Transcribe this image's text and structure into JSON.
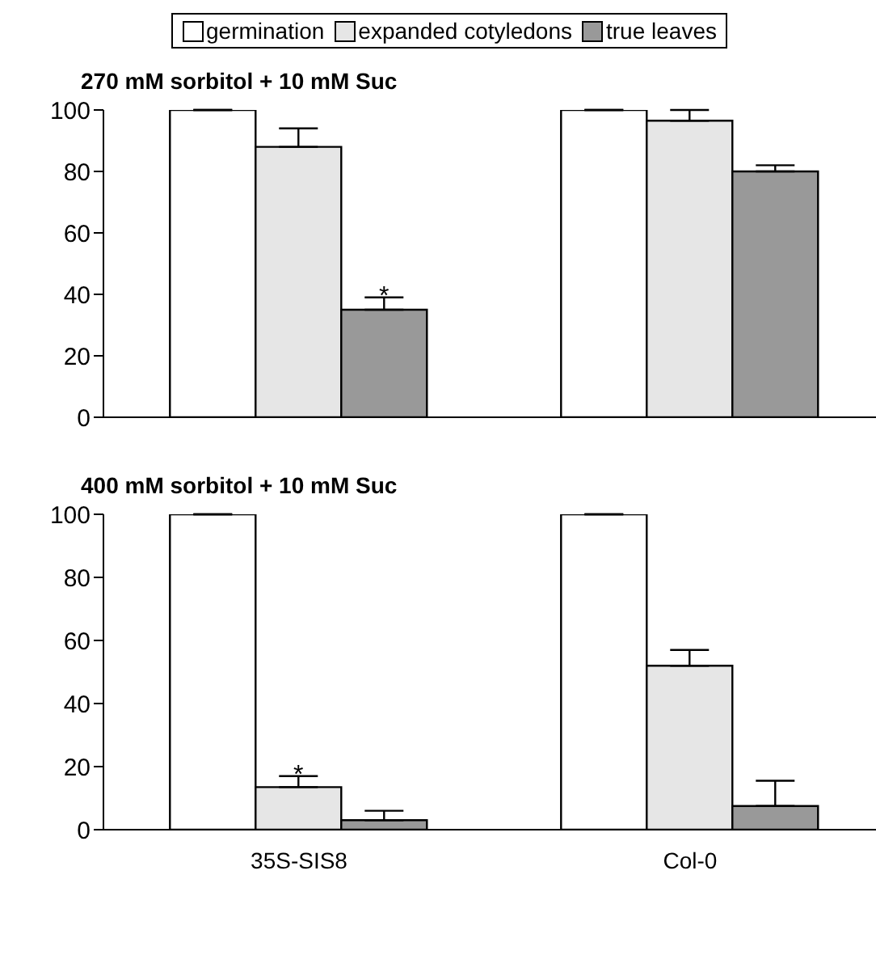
{
  "chart_data": [
    {
      "type": "bar",
      "title": "270 mM sorbitol + 10 mM Suc",
      "categories": [
        null,
        null
      ],
      "series": [
        {
          "name": "germination",
          "color": "#ffffff",
          "values": [
            100,
            100
          ],
          "errors": [
            [
              100,
              100
            ],
            [
              100,
              100
            ]
          ]
        },
        {
          "name": "expanded cotyledons",
          "color": "#e6e6e6",
          "values": [
            88,
            96.5
          ],
          "errors": [
            [
              88,
              94
            ],
            [
              96.5,
              100
            ]
          ]
        },
        {
          "name": "true leaves",
          "color": "#999999",
          "values": [
            35,
            80
          ],
          "errors": [
            [
              35,
              39
            ],
            [
              80,
              82
            ]
          ]
        }
      ],
      "ylim": [
        0,
        100
      ],
      "yticks": [
        0,
        20,
        40,
        60,
        80,
        100
      ],
      "tick_labels": "y",
      "legend": "top",
      "grid": false,
      "annotations": [
        "*"
      ]
    },
    {
      "type": "bar",
      "title": "400 mM sorbitol + 10 mM Suc",
      "categories": [
        "35S-SIS8",
        "Col-0"
      ],
      "series": [
        {
          "color": "#ffffff",
          "values": [
            100,
            100
          ],
          "errors": [
            [
              100,
              100
            ],
            [
              100,
              100
            ]
          ]
        },
        {
          "color": "#e6e6e6",
          "values": [
            13.5,
            52
          ],
          "errors": [
            [
              13.5,
              17
            ],
            [
              52,
              57
            ]
          ]
        },
        {
          "color": "#999999",
          "values": [
            3,
            7.5
          ],
          "errors": [
            [
              3,
              6
            ],
            [
              7.5,
              15.5
            ]
          ]
        }
      ],
      "ylim": [
        0,
        100
      ],
      "yticks": [
        0,
        20,
        40,
        60,
        80,
        100
      ],
      "legend": false,
      "grid": false,
      "annotations": [
        {
          "text": "*",
          "x": "35S-SIS8",
          "y": 17
        }
      ]
    }
  ]
}
